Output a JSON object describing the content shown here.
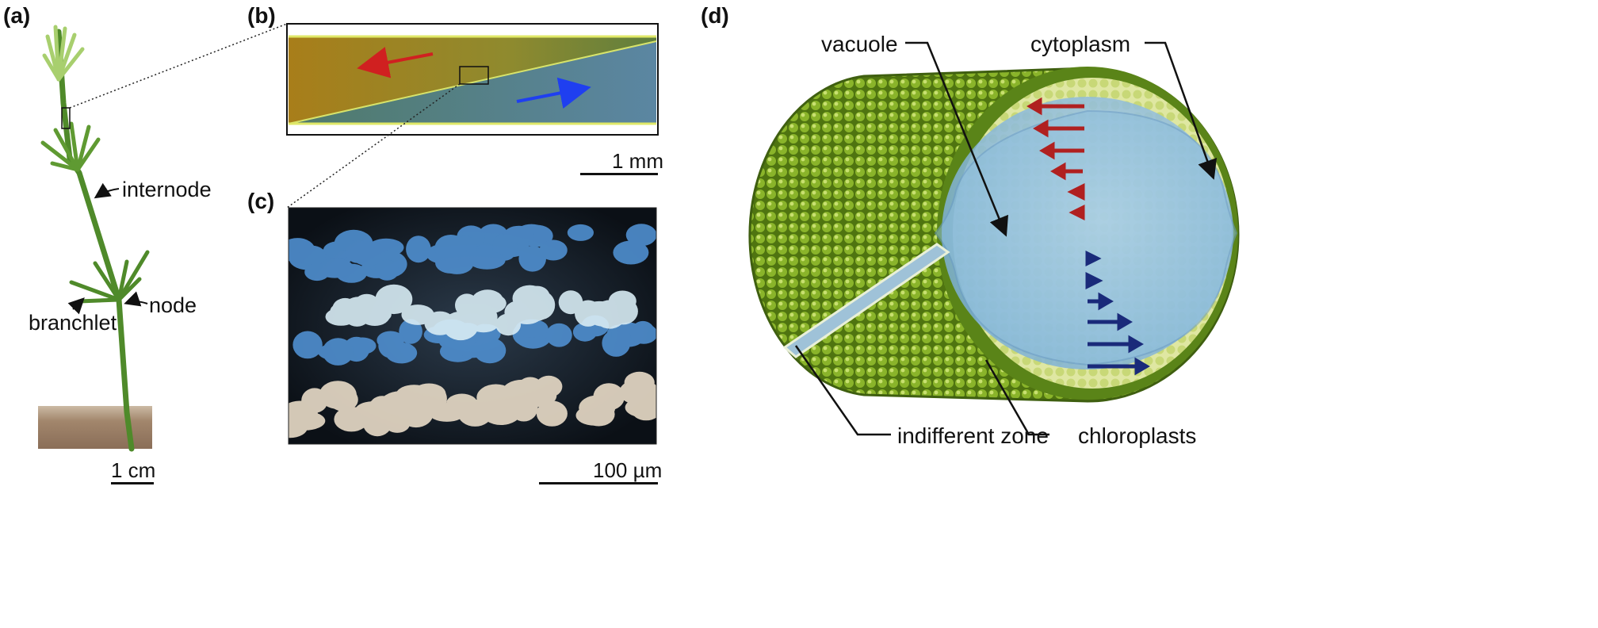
{
  "panels": {
    "a": {
      "label": "(a)",
      "annotations": {
        "internode": "internode",
        "node": "node",
        "branchlet": "branchlet"
      },
      "scale_bar": "1 cm"
    },
    "b": {
      "label": "(b)",
      "arrows": {
        "upper": "leftward",
        "lower": "rightward"
      },
      "scale_bar": "1 mm"
    },
    "c": {
      "label": "(c)",
      "scale_bar": "100 µm"
    },
    "d": {
      "label": "(d)",
      "annotations": {
        "vacuole": "vacuole",
        "cytoplasm": "cytoplasm",
        "indifferent_zone": "indifferent zone",
        "chloroplasts": "chloroplasts"
      }
    }
  },
  "colors": {
    "flow_up": "#b02020",
    "flow_down": "#1a2a7a",
    "chloroplast": "#6e9a1c",
    "vacuole": "#7fb2d8",
    "arrow_red": "#d02020",
    "arrow_blue": "#1f3ff0"
  }
}
